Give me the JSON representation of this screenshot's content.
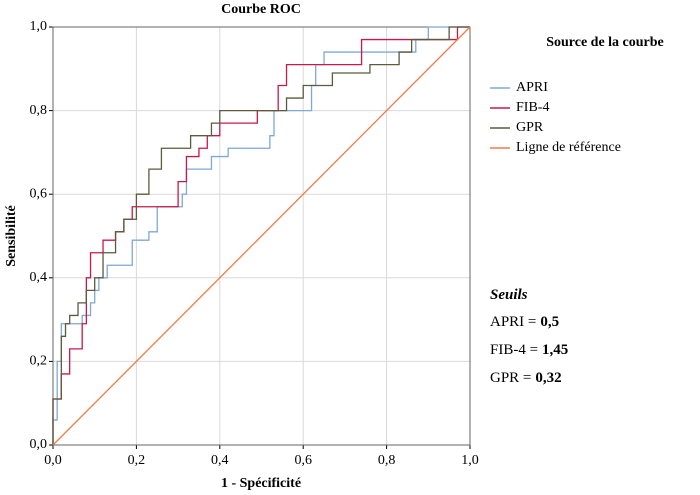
{
  "chart_data": {
    "type": "line",
    "title": "Courbe ROC",
    "xlabel": "1 - Spécificité",
    "ylabel": "Sensibilité",
    "xlim": [
      0,
      1
    ],
    "ylim": [
      0,
      1
    ],
    "xticks": [
      {
        "value": 0,
        "label": "0,0"
      },
      {
        "value": 0.2,
        "label": "0,2"
      },
      {
        "value": 0.4,
        "label": "0,4"
      },
      {
        "value": 0.6,
        "label": "0,6"
      },
      {
        "value": 0.8,
        "label": "0,8"
      },
      {
        "value": 1,
        "label": "1,0"
      }
    ],
    "yticks": [
      {
        "value": 0,
        "label": "0,0"
      },
      {
        "value": 0.2,
        "label": "0,2"
      },
      {
        "value": 0.4,
        "label": "0,4"
      },
      {
        "value": 0.6,
        "label": "0,6"
      },
      {
        "value": 0.8,
        "label": "0,8"
      },
      {
        "value": 1,
        "label": "1,0"
      }
    ],
    "grid": true,
    "legend_title": "Source de la courbe",
    "series": [
      {
        "name": "APRI",
        "color": "#7fa8d8",
        "x": [
          0,
          0,
          0.01,
          0.01,
          0.02,
          0.02,
          0.07,
          0.07,
          0.09,
          0.09,
          0.1,
          0.1,
          0.11,
          0.11,
          0.13,
          0.13,
          0.19,
          0.19,
          0.23,
          0.23,
          0.25,
          0.25,
          0.31,
          0.31,
          0.32,
          0.32,
          0.38,
          0.38,
          0.42,
          0.42,
          0.52,
          0.52,
          0.53,
          0.53,
          0.62,
          0.62,
          0.63,
          0.63,
          0.65,
          0.65,
          0.87,
          0.87,
          0.9,
          0.9,
          1
        ],
        "values": [
          0,
          0.06,
          0.06,
          0.2,
          0.2,
          0.29,
          0.29,
          0.31,
          0.31,
          0.34,
          0.34,
          0.37,
          0.37,
          0.4,
          0.4,
          0.43,
          0.43,
          0.49,
          0.49,
          0.51,
          0.51,
          0.57,
          0.57,
          0.6,
          0.6,
          0.66,
          0.66,
          0.69,
          0.69,
          0.71,
          0.71,
          0.74,
          0.74,
          0.8,
          0.8,
          0.86,
          0.86,
          0.91,
          0.91,
          0.94,
          0.94,
          0.97,
          0.97,
          1,
          1
        ]
      },
      {
        "name": "FIB-4",
        "color": "#c9184a",
        "x": [
          0,
          0,
          0.02,
          0.02,
          0.04,
          0.04,
          0.07,
          0.07,
          0.08,
          0.08,
          0.09,
          0.09,
          0.12,
          0.12,
          0.15,
          0.15,
          0.17,
          0.17,
          0.19,
          0.19,
          0.3,
          0.3,
          0.32,
          0.32,
          0.35,
          0.35,
          0.37,
          0.37,
          0.4,
          0.4,
          0.49,
          0.49,
          0.54,
          0.54,
          0.56,
          0.56,
          0.74,
          0.74,
          0.97,
          0.97,
          1
        ],
        "values": [
          0,
          0.11,
          0.11,
          0.17,
          0.17,
          0.23,
          0.23,
          0.29,
          0.29,
          0.4,
          0.4,
          0.46,
          0.46,
          0.49,
          0.49,
          0.51,
          0.51,
          0.54,
          0.54,
          0.57,
          0.57,
          0.63,
          0.63,
          0.69,
          0.69,
          0.71,
          0.71,
          0.74,
          0.74,
          0.77,
          0.77,
          0.8,
          0.8,
          0.86,
          0.86,
          0.91,
          0.91,
          0.97,
          0.97,
          1,
          1
        ]
      },
      {
        "name": "GPR",
        "color": "#5b5b3e",
        "x": [
          0,
          0,
          0.02,
          0.02,
          0.03,
          0.03,
          0.04,
          0.04,
          0.06,
          0.06,
          0.08,
          0.08,
          0.1,
          0.1,
          0.12,
          0.12,
          0.15,
          0.15,
          0.17,
          0.17,
          0.2,
          0.2,
          0.23,
          0.23,
          0.26,
          0.26,
          0.33,
          0.33,
          0.38,
          0.38,
          0.4,
          0.4,
          0.56,
          0.56,
          0.6,
          0.6,
          0.67,
          0.67,
          0.76,
          0.76,
          0.83,
          0.83,
          0.86,
          0.86,
          0.95,
          0.95,
          1
        ],
        "values": [
          0,
          0.11,
          0.11,
          0.26,
          0.26,
          0.29,
          0.29,
          0.31,
          0.31,
          0.34,
          0.34,
          0.37,
          0.37,
          0.4,
          0.4,
          0.46,
          0.46,
          0.51,
          0.51,
          0.54,
          0.54,
          0.6,
          0.6,
          0.66,
          0.66,
          0.71,
          0.71,
          0.74,
          0.74,
          0.77,
          0.77,
          0.8,
          0.8,
          0.83,
          0.83,
          0.86,
          0.86,
          0.89,
          0.89,
          0.91,
          0.91,
          0.94,
          0.94,
          0.97,
          0.97,
          1,
          1
        ]
      },
      {
        "name": "Ligne de référence",
        "color": "#f07c4a",
        "x": [
          0,
          1
        ],
        "values": [
          0,
          1
        ]
      }
    ],
    "annotation": {
      "title": "Seuils",
      "rows": [
        {
          "label": "APRI =",
          "value": "0,5"
        },
        {
          "label": "FIB-4 =",
          "value": "1,45"
        },
        {
          "label": "GPR =",
          "value": "0,32"
        }
      ]
    }
  }
}
